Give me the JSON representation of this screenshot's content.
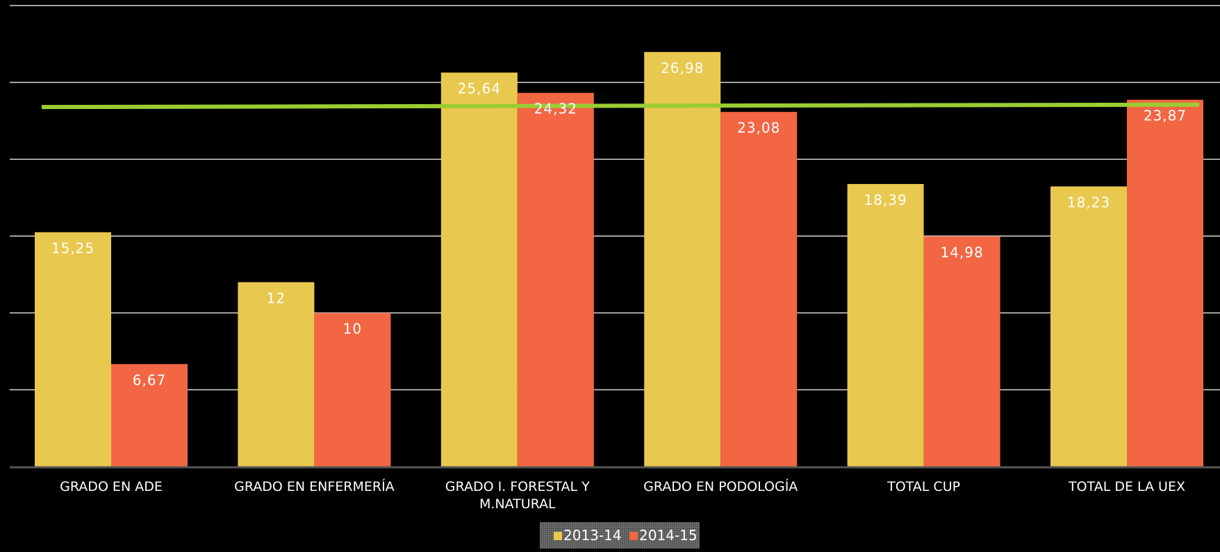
{
  "chart_data": {
    "type": "bar",
    "categories": [
      [
        "GRADO EN ADE"
      ],
      [
        "GRADO EN ENFERMERÍA"
      ],
      [
        "GRADO I. FORESTAL Y",
        "M.NATURAL"
      ],
      [
        "GRADO EN PODOLOGÍA"
      ],
      [
        "TOTAL CUP"
      ],
      [
        "TOTAL DE LA UEX"
      ]
    ],
    "series": [
      {
        "name": "2013-14",
        "color": "#E8C84E",
        "values": [
          15.25,
          12,
          25.64,
          26.98,
          18.39,
          18.23
        ],
        "labels": [
          "15,25",
          "12",
          "25,64",
          "26,98",
          "18,39",
          "18,23"
        ]
      },
      {
        "name": "2014-15",
        "color": "#F26644",
        "values": [
          6.67,
          10,
          24.32,
          23.08,
          14.98,
          23.87
        ],
        "labels": [
          "6,67",
          "10",
          "24,32",
          "23,08",
          "14,98",
          "23,87"
        ]
      }
    ],
    "reference_line": {
      "color": "#9ACD32",
      "start_value": 23.4,
      "end_value": 23.55
    },
    "ylim": [
      0,
      30
    ],
    "y_gridlines": [
      5,
      10,
      15,
      20,
      25,
      30
    ],
    "grid": true,
    "legend_position": "bottom",
    "title": "",
    "xlabel": "",
    "ylabel": ""
  }
}
